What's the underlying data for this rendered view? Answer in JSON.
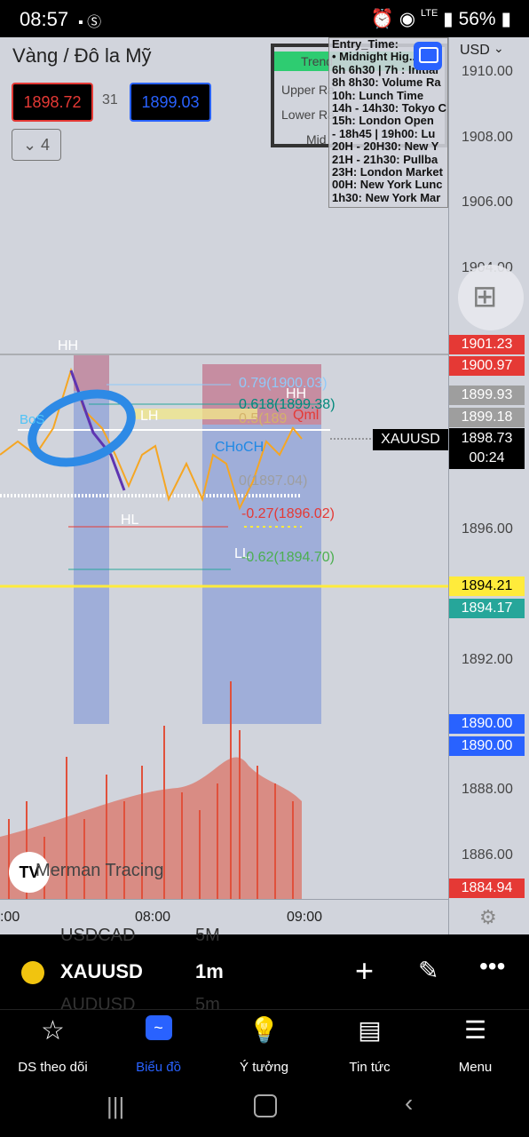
{
  "status": {
    "time": "08:57",
    "network": "LTE",
    "battery": "56%"
  },
  "chart": {
    "title": "Vàng / Đô la Mỹ",
    "bid": "1898.72",
    "spread": "31",
    "ask": "1899.03",
    "indicators_toggle": "4",
    "currency": "USD",
    "symbol_tag": "XAUUSD",
    "current_price": "1898.73",
    "countdown": "00:24",
    "watermark": "Merman Tracing",
    "colors": {
      "accent": "#2962ff",
      "up": "#f5a623",
      "down": "#e0513c",
      "bg": "#d1d4dc"
    }
  },
  "trend_box": {
    "trend": "Trend",
    "upper": "Upper Ra",
    "lower": "Lower Ra",
    "mid": "Mid"
  },
  "session_panel": [
    "Entry_Time:",
    "• Midnight Hig...ov",
    "6h 6h30 | 7h : Initial",
    "8h 8h30: Volume Ra",
    "10h: Lunch Time",
    "14h - 14h30: Tokyo C",
    "15h: London Open",
    "- 18h45 | 19h00: Lu",
    "20H - 20H30: New Y",
    "21H - 21h30: Pullba",
    "23H: London Market",
    "00H: New York Lunc",
    "1h30: New York Mar"
  ],
  "price_ticks": [
    "1910.00",
    "1908.00",
    "1906.00",
    "1904.00",
    "1896.00",
    "1892.00",
    "1888.00",
    "1886.00"
  ],
  "price_badges": [
    {
      "text": "1901.23",
      "color": "#e53935"
    },
    {
      "text": "1900.97",
      "color": "#e53935"
    },
    {
      "text": "1899.93",
      "color": "#9e9e9e"
    },
    {
      "text": "1899.18",
      "color": "#9e9e9e"
    },
    {
      "text": "1894.21",
      "color": "#ffeb3b"
    },
    {
      "text": "1894.17",
      "color": "#26a69a"
    },
    {
      "text": "1890.00",
      "color": "#2962ff"
    },
    {
      "text": "1890.00",
      "color": "#2962ff"
    },
    {
      "text": "1884.94",
      "color": "#e53935"
    }
  ],
  "time_ticks": [
    ":00",
    "08:00",
    "09:00"
  ],
  "annotations": {
    "hh1": "HH",
    "hh2": "HH",
    "lh": "LH",
    "hl": "HL",
    "ll": "LL",
    "choch": "CHoCH",
    "qml": "Qml",
    "bos": "BoS",
    "fib_079": "0.79(1900.03)",
    "fib_0618": "0.618(1899.38)",
    "fib_05": "0.5(189",
    "fib_0": "0(1897.04)",
    "fib_neg027": "-0.27(1896.02)",
    "fib_neg062": "-0.62(1894.70)"
  },
  "toolbar": {
    "symbol": "XAUUSD",
    "interval": "1m",
    "ghost_top": "USDCAD",
    "ghost_top_interval": "5M",
    "ghost_bottom": "AUDUSD",
    "ghost_bottom_interval": "5m"
  },
  "nav": {
    "watchlist": "DS theo dõi",
    "chart": "Biểu đồ",
    "ideas": "Ý tưởng",
    "news": "Tin tức",
    "menu": "Menu"
  }
}
